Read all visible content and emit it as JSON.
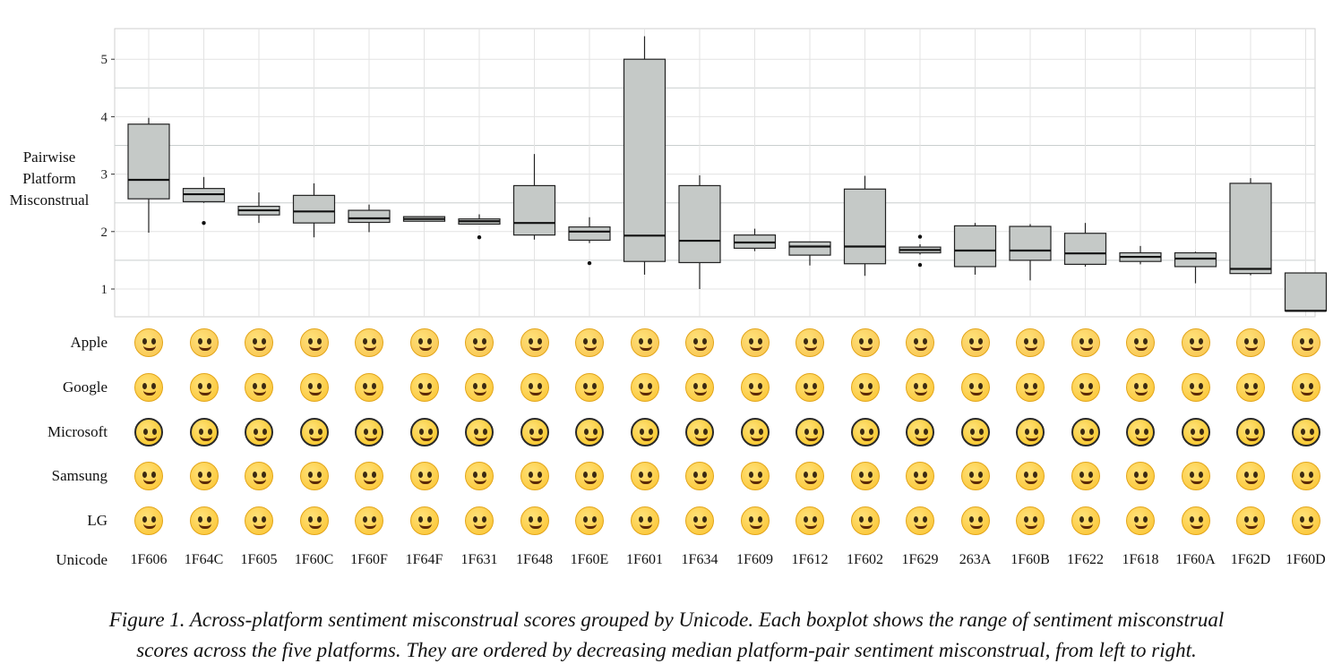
{
  "chart_data": {
    "type": "boxplot",
    "ylabel": "Pairwise Platform Misconstrual",
    "yticks": [
      1,
      2,
      3,
      4,
      5
    ],
    "ylim": [
      0.5,
      5.5
    ],
    "grid": true,
    "categories": [
      "1F606",
      "1F64C",
      "1F605",
      "1F60C",
      "1F60F",
      "1F64F",
      "1F631",
      "1F648",
      "1F60E",
      "1F601",
      "1F634",
      "1F609",
      "1F612",
      "1F602",
      "1F629",
      "263A",
      "1F60B",
      "1F622",
      "1F618",
      "1F60A",
      "1F62D",
      "1F60D"
    ],
    "boxes": [
      {
        "min": 1.98,
        "q1": 2.57,
        "median": 2.9,
        "q3": 3.87,
        "max": 3.98,
        "outliers": []
      },
      {
        "min": 2.5,
        "q1": 2.52,
        "median": 2.65,
        "q3": 2.75,
        "max": 2.95,
        "outliers": [
          2.15
        ]
      },
      {
        "min": 2.15,
        "q1": 2.29,
        "median": 2.37,
        "q3": 2.44,
        "max": 2.68,
        "outliers": []
      },
      {
        "min": 1.9,
        "q1": 2.15,
        "median": 2.35,
        "q3": 2.63,
        "max": 2.84,
        "outliers": []
      },
      {
        "min": 1.99,
        "q1": 2.16,
        "median": 2.23,
        "q3": 2.37,
        "max": 2.47,
        "outliers": []
      },
      {
        "min": 2.18,
        "q1": 2.18,
        "median": 2.22,
        "q3": 2.26,
        "max": 2.26,
        "outliers": []
      },
      {
        "min": 2.13,
        "q1": 2.13,
        "median": 2.18,
        "q3": 2.22,
        "max": 2.3,
        "outliers": [
          1.9
        ]
      },
      {
        "min": 1.86,
        "q1": 1.94,
        "median": 2.15,
        "q3": 2.8,
        "max": 3.35,
        "outliers": []
      },
      {
        "min": 1.8,
        "q1": 1.85,
        "median": 2.0,
        "q3": 2.08,
        "max": 2.25,
        "outliers": [
          1.45
        ]
      },
      {
        "min": 1.25,
        "q1": 1.48,
        "median": 1.93,
        "q3": 5.0,
        "max": 5.4,
        "outliers": []
      },
      {
        "min": 1.0,
        "q1": 1.46,
        "median": 1.84,
        "q3": 2.8,
        "max": 2.98,
        "outliers": []
      },
      {
        "min": 1.66,
        "q1": 1.71,
        "median": 1.81,
        "q3": 1.94,
        "max": 2.05,
        "outliers": []
      },
      {
        "min": 1.41,
        "q1": 1.59,
        "median": 1.74,
        "q3": 1.82,
        "max": 1.82,
        "outliers": []
      },
      {
        "min": 1.23,
        "q1": 1.44,
        "median": 1.74,
        "q3": 2.74,
        "max": 2.97,
        "outliers": []
      },
      {
        "min": 1.6,
        "q1": 1.63,
        "median": 1.68,
        "q3": 1.73,
        "max": 1.78,
        "outliers": [
          1.91,
          1.42
        ]
      },
      {
        "min": 1.25,
        "q1": 1.39,
        "median": 1.67,
        "q3": 2.1,
        "max": 2.15,
        "outliers": []
      },
      {
        "min": 1.15,
        "q1": 1.5,
        "median": 1.67,
        "q3": 2.09,
        "max": 2.13,
        "outliers": []
      },
      {
        "min": 1.39,
        "q1": 1.43,
        "median": 1.62,
        "q3": 1.97,
        "max": 2.15,
        "outliers": []
      },
      {
        "min": 1.43,
        "q1": 1.48,
        "median": 1.56,
        "q3": 1.63,
        "max": 1.75,
        "outliers": []
      },
      {
        "min": 1.1,
        "q1": 1.39,
        "median": 1.53,
        "q3": 1.63,
        "max": 1.65,
        "outliers": []
      },
      {
        "min": 1.24,
        "q1": 1.27,
        "median": 1.35,
        "q3": 2.84,
        "max": 2.93,
        "outliers": []
      },
      {
        "min": 0.62,
        "q1": 0.62,
        "median": 0.62,
        "q3": 1.28,
        "max": 1.28,
        "outliers": []
      }
    ]
  },
  "platforms": [
    "Apple",
    "Google",
    "Microsoft",
    "Samsung",
    "LG"
  ],
  "unicode_label": "Unicode",
  "caption": {
    "line1": "Figure 1. Across-platform sentiment misconstrual scores grouped by Unicode. Each boxplot shows the range of sentiment misconstrual",
    "line2": "scores across the five platforms. They are ordered by decreasing median platform-pair sentiment misconstrual, from left to right."
  },
  "colors": {
    "box_fill": "#c5c9c7",
    "grid": "#e3e3e3",
    "emoji_yellow": "#fbc22c",
    "apple_yellow": "#f8c24d"
  }
}
